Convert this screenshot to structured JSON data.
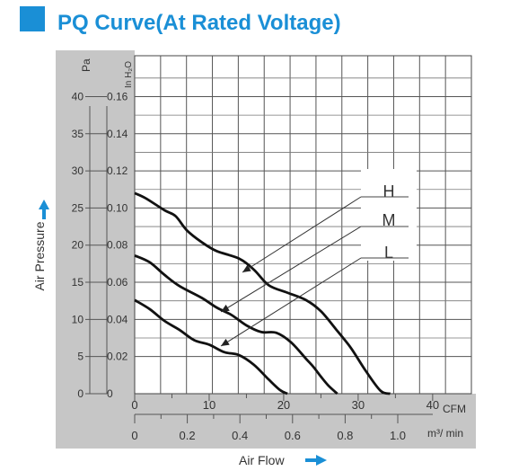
{
  "header": {
    "title": "PQ Curve(At Rated Voltage)",
    "accent_color": "#1a8fd6"
  },
  "chart_data": {
    "type": "line",
    "title": "PQ Curve(At Rated Voltage)",
    "y_axis_label": "Air Pressure",
    "x_axis_label": "Air Flow",
    "y_units": {
      "primary": "Pa",
      "secondary": "In H₂O"
    },
    "x_units": {
      "primary": "CFM",
      "secondary": "m³/ min"
    },
    "pa_ticks": [
      "0",
      "5",
      "10",
      "15",
      "20",
      "25",
      "30",
      "35",
      "40"
    ],
    "inh2o_ticks": [
      "0",
      "0.02",
      "0.04",
      "0.06",
      "0.08",
      "0.10",
      "0.12",
      "0.14",
      "0.16"
    ],
    "cfm_ticks": [
      "0",
      "10",
      "20",
      "30",
      "40"
    ],
    "m3min_ticks": [
      "0",
      "0.2",
      "0.4",
      "0.6",
      "0.8",
      "1.0"
    ],
    "xlim_cfm": [
      0,
      45.2
    ],
    "ylim_pa": [
      0,
      45.5
    ],
    "grid": true,
    "arrow_color": "#1a8fd6",
    "series": [
      {
        "name": "H",
        "x": [
          0,
          1.5,
          4,
          5.5,
          7,
          9,
          11,
          14,
          16,
          18,
          20.5,
          23,
          25,
          27,
          29,
          31,
          33,
          34.3
        ],
        "y": [
          27,
          26.3,
          24.7,
          23.9,
          22,
          20.4,
          19.2,
          18.2,
          16.7,
          14.6,
          13.6,
          12.6,
          11.1,
          8.7,
          6.2,
          3.1,
          0.4,
          0
        ]
      },
      {
        "name": "M",
        "x": [
          0,
          2,
          4,
          6,
          9,
          11,
          13,
          15,
          17,
          19,
          21,
          23,
          24,
          25,
          26,
          27.2
        ],
        "y": [
          18.6,
          17.7,
          16,
          14.5,
          12.9,
          11.6,
          10.6,
          9.2,
          8.3,
          8.2,
          6.9,
          4.7,
          3.6,
          2.3,
          1.1,
          0
        ]
      },
      {
        "name": "L",
        "x": [
          0,
          2,
          4,
          6,
          8,
          10,
          12,
          14,
          16,
          18,
          19.5,
          20.5
        ],
        "y": [
          12.6,
          11.4,
          9.8,
          8.6,
          7.2,
          6.6,
          5.6,
          5.2,
          3.9,
          1.9,
          0.5,
          0
        ]
      }
    ]
  }
}
